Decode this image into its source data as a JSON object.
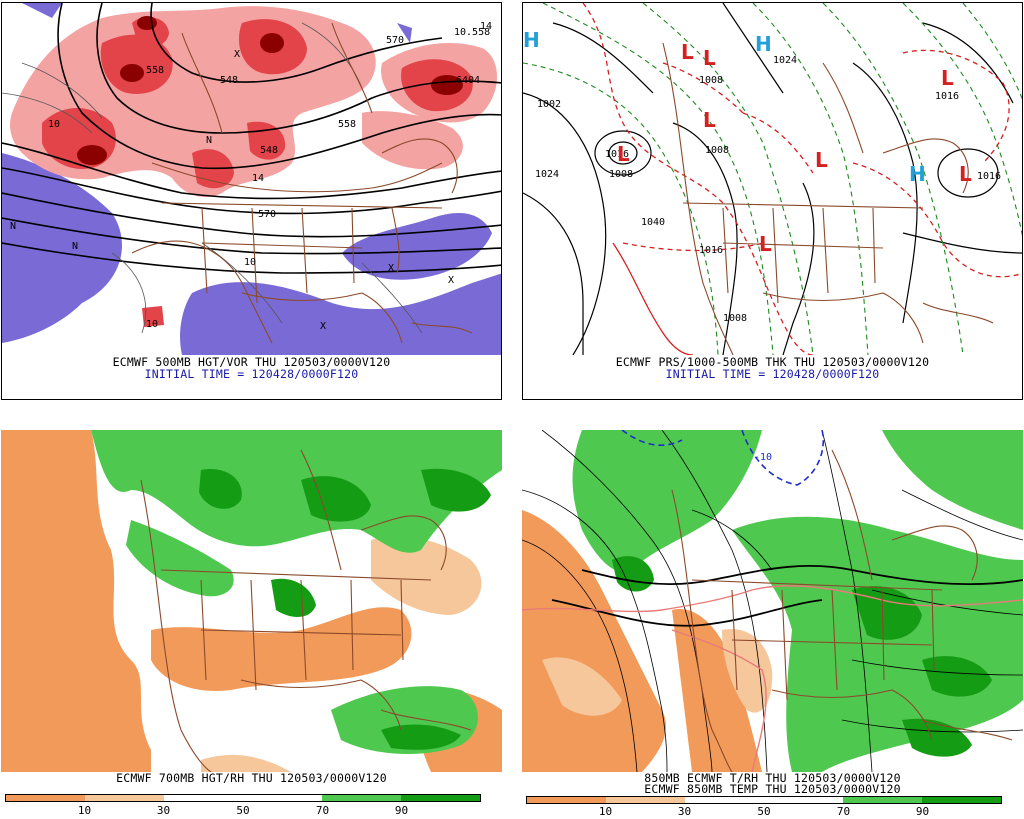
{
  "panels": [
    {
      "id": "top-left",
      "title": "ECMWF 500MB HGT/VOR THU 120503/0000V120",
      "subtitle": "INITIAL TIME = 120428/0000F120",
      "contour_labels": [
        "570",
        "10.558",
        "558",
        "548",
        "548",
        "14",
        "6404",
        "10",
        "558",
        "570",
        "10",
        "10",
        "14"
      ],
      "symbols": [
        "N",
        "N",
        "N",
        "X",
        "X",
        "X",
        "X"
      ]
    },
    {
      "id": "top-right",
      "title": "ECMWF PRS/1000-500MB THK THU 120503/0000V120",
      "subtitle": "INITIAL TIME = 120428/0000F120",
      "pressure_labels": [
        "1002",
        "1024",
        "1016",
        "1008",
        "1008",
        "1008",
        "1008",
        "1016",
        "1016",
        "1016",
        "1024",
        "1040"
      ],
      "highs": [
        "H",
        "H",
        "H"
      ],
      "lows": [
        "L",
        "L",
        "L",
        "L",
        "L",
        "L",
        "L",
        "L",
        "L"
      ]
    },
    {
      "id": "bottom-left",
      "title": "ECMWF 700MB HGT/RH THU 120503/0000V120",
      "colorbar": {
        "colors": [
          "#f29a5a",
          "#f7c79c",
          "#ffffff",
          "#ffffff",
          "#4fc84f",
          "#149c14"
        ],
        "ticks": [
          "10",
          "30",
          "50",
          "70",
          "90"
        ]
      }
    },
    {
      "id": "bottom-right",
      "title": "850MB ECMWF T/RH THU 120503/0000V120",
      "subtitle": "ECMWF 850MB TEMP THU 120503/0000V120",
      "contour_labels": [
        "-10"
      ],
      "colorbar": {
        "colors": [
          "#f29a5a",
          "#f7c79c",
          "#ffffff",
          "#ffffff",
          "#4fc84f",
          "#149c14"
        ],
        "ticks": [
          "10",
          "30",
          "50",
          "70",
          "90"
        ]
      }
    }
  ],
  "colors": {
    "vorticity_dark": "#8b0000",
    "vorticity_mid": "#e2444a",
    "vorticity_light": "#f4a3a3",
    "negative_vort": "#7a6ad6",
    "rh_green_light": "#4fc84f",
    "rh_green_dark": "#149c14",
    "rh_orange": "#f29a5a",
    "rh_orange_light": "#f7c79c",
    "map_boundaries": "#8b4a2b",
    "thickness_red": "#d42020",
    "thickness_green": "#1e8a1e",
    "high_symbol": "#22a0d8",
    "low_symbol": "#d42020",
    "caption_blue": "#1a1aa8"
  }
}
